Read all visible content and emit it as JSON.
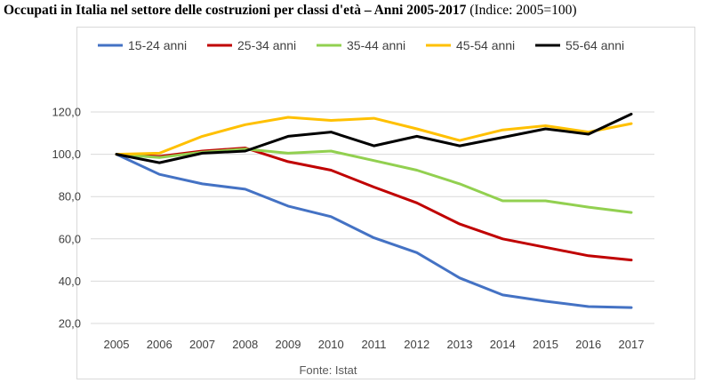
{
  "header": {
    "title_main": "Occupati in Italia nel settore delle costruzioni per classi d'età – Anni 2005-2017",
    "title_index": "(Indice: 2005=100)"
  },
  "chart_data": {
    "type": "line",
    "title": "Occupati in Italia nel settore delle costruzioni per classi d'età – Anni 2005-2017 (Indice: 2005=100)",
    "xlabel": "",
    "ylabel": "",
    "x": [
      "2005",
      "2006",
      "2007",
      "2008",
      "2009",
      "2010",
      "2011",
      "2012",
      "2013",
      "2014",
      "2015",
      "2016",
      "2017"
    ],
    "ylim": [
      20,
      120
    ],
    "yticks": [
      "20,0",
      "40,0",
      "60,0",
      "80,0",
      "100,0",
      "120,0"
    ],
    "ytick_values": [
      20,
      40,
      60,
      80,
      100,
      120
    ],
    "grid": true,
    "legend_position": "top",
    "source": "Fonte: Istat",
    "series": [
      {
        "name": "15-24 anni",
        "color": "#4472C4",
        "values": [
          100,
          90.5,
          86,
          83.5,
          75.5,
          70.5,
          60.5,
          53.5,
          41.5,
          33.5,
          30.5,
          28,
          27.5
        ]
      },
      {
        "name": "25-34 anni",
        "color": "#C00000",
        "values": [
          100,
          99,
          101.5,
          103,
          96.5,
          92.5,
          84.5,
          77,
          67,
          60,
          56,
          52,
          50
        ]
      },
      {
        "name": "35-44 anni",
        "color": "#92D050",
        "values": [
          100,
          98.5,
          101,
          102.5,
          100.5,
          101.5,
          97,
          92.5,
          86,
          78,
          78,
          75,
          72.5
        ]
      },
      {
        "name": "45-54 anni",
        "color": "#FFC000",
        "values": [
          100,
          100.5,
          108.5,
          114,
          117.5,
          116,
          117,
          112,
          106.5,
          111.5,
          113.5,
          110.5,
          114.5
        ]
      },
      {
        "name": "55-64 anni",
        "color": "#000000",
        "values": [
          100,
          96,
          100.5,
          101.5,
          108.5,
          110.5,
          104,
          108.5,
          104,
          108,
          112,
          109.5,
          119
        ]
      }
    ]
  }
}
